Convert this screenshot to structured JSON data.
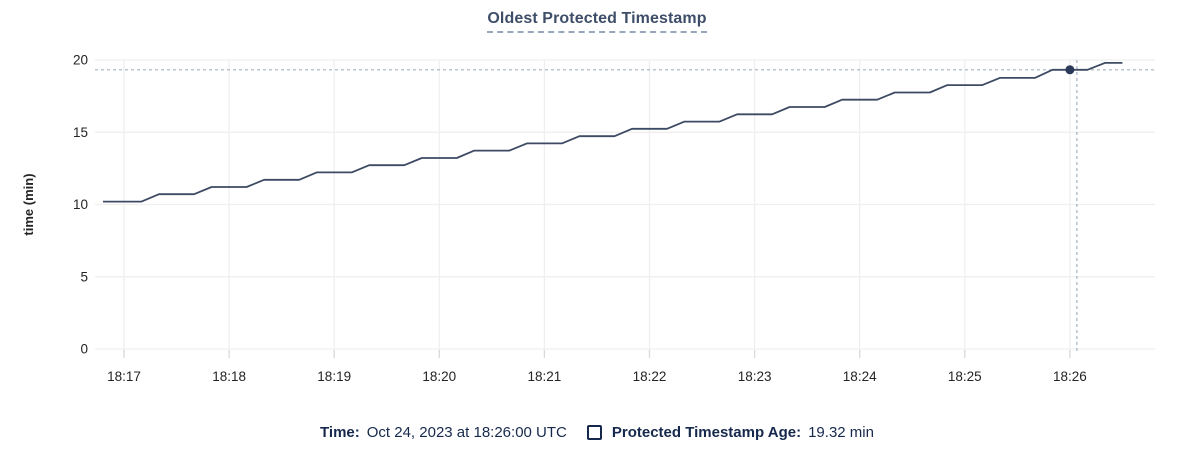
{
  "title": "Oldest Protected Timestamp",
  "colors": {
    "title_text": "#3f4e68",
    "title_underline": "#98a6bc",
    "line": "#3d4a63",
    "dot": "#2a3a58",
    "crosshair": "#a4b2bf",
    "grid": "#efefef",
    "tick": "#d9d9d9",
    "axis_text": "#242424",
    "legend_text": "#16294d"
  },
  "tooltip": {
    "time_label": "Time:",
    "time_value": "Oct 24, 2023 at 18:26:00 UTC",
    "series_label": "Protected Timestamp Age:",
    "series_value": "19.32 min"
  },
  "chart_data": {
    "type": "line",
    "title": "Oldest Protected Timestamp",
    "xlabel": "",
    "ylabel": "time (min)",
    "ylim": [
      0,
      20
    ],
    "grid": true,
    "y_ticks": [
      0,
      5,
      10,
      15,
      20
    ],
    "x_ticks": [
      "18:17",
      "18:18",
      "18:19",
      "18:20",
      "18:21",
      "18:22",
      "18:23",
      "18:24",
      "18:25",
      "18:26"
    ],
    "hover": {
      "time": "18:26:00",
      "crosshair_time": "18:26:04",
      "value": 19.32,
      "date": "Oct 24, 2023",
      "unit": "min"
    },
    "series": [
      {
        "name": "Protected Timestamp Age",
        "points": [
          [
            "18:16:48",
            10.2
          ],
          [
            "18:17:10",
            10.2
          ],
          [
            "18:17:20",
            10.71
          ],
          [
            "18:17:40",
            10.71
          ],
          [
            "18:17:50",
            11.21
          ],
          [
            "18:18:10",
            11.21
          ],
          [
            "18:18:20",
            11.71
          ],
          [
            "18:18:40",
            11.71
          ],
          [
            "18:18:50",
            12.22
          ],
          [
            "18:19:10",
            12.22
          ],
          [
            "18:19:20",
            12.72
          ],
          [
            "18:19:40",
            12.72
          ],
          [
            "18:19:50",
            13.22
          ],
          [
            "18:20:10",
            13.22
          ],
          [
            "18:20:20",
            13.73
          ],
          [
            "18:20:40",
            13.73
          ],
          [
            "18:20:50",
            14.23
          ],
          [
            "18:21:10",
            14.23
          ],
          [
            "18:21:20",
            14.73
          ],
          [
            "18:21:40",
            14.73
          ],
          [
            "18:21:50",
            15.24
          ],
          [
            "18:22:10",
            15.24
          ],
          [
            "18:22:20",
            15.74
          ],
          [
            "18:22:40",
            15.74
          ],
          [
            "18:22:50",
            16.24
          ],
          [
            "18:23:10",
            16.24
          ],
          [
            "18:23:20",
            16.75
          ],
          [
            "18:23:40",
            16.75
          ],
          [
            "18:23:50",
            17.25
          ],
          [
            "18:24:10",
            17.25
          ],
          [
            "18:24:20",
            17.75
          ],
          [
            "18:24:40",
            17.75
          ],
          [
            "18:24:50",
            18.26
          ],
          [
            "18:25:10",
            18.26
          ],
          [
            "18:25:20",
            18.76
          ],
          [
            "18:25:40",
            18.76
          ],
          [
            "18:25:50",
            19.32
          ],
          [
            "18:26:10",
            19.32
          ],
          [
            "18:26:20",
            19.8
          ],
          [
            "18:26:30",
            19.8
          ]
        ]
      }
    ]
  }
}
